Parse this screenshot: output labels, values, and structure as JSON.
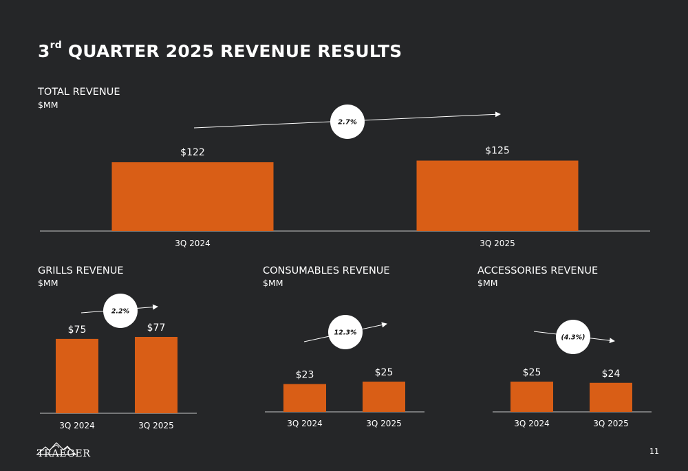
{
  "slide": {
    "title_main": "3",
    "title_sup": "rd",
    "title_rest": " QUARTER 2025 REVENUE RESULTS",
    "page_number": "11",
    "logo_text": "TRAEGER"
  },
  "colors": {
    "bar": "#d95e16",
    "background": "#252628",
    "text": "#ffffff"
  },
  "sections": {
    "total": {
      "label": "TOTAL REVENUE",
      "unit": "$MM"
    },
    "grills": {
      "label": "GRILLS REVENUE",
      "unit": "$MM"
    },
    "consumables": {
      "label": "CONSUMABLES REVENUE",
      "unit": "$MM"
    },
    "accessories": {
      "label": "ACCESSORIES REVENUE",
      "unit": "$MM"
    }
  },
  "chart_data": [
    {
      "id": "total",
      "type": "bar",
      "title": "TOTAL REVENUE",
      "ylabel": "$MM",
      "categories": [
        "3Q 2024",
        "3Q 2025"
      ],
      "values": [
        122,
        125
      ],
      "data_labels": [
        "$122",
        "$125"
      ],
      "growth_label": "2.7%",
      "trend": "up"
    },
    {
      "id": "grills",
      "type": "bar",
      "title": "GRILLS REVENUE",
      "ylabel": "$MM",
      "categories": [
        "3Q 2024",
        "3Q 2025"
      ],
      "values": [
        75,
        77
      ],
      "data_labels": [
        "$75",
        "$77"
      ],
      "growth_label": "2.2%",
      "trend": "up"
    },
    {
      "id": "consumables",
      "type": "bar",
      "title": "CONSUMABLES REVENUE",
      "ylabel": "$MM",
      "categories": [
        "3Q 2024",
        "3Q 2025"
      ],
      "values": [
        23,
        25
      ],
      "data_labels": [
        "$23",
        "$25"
      ],
      "growth_label": "12.3%",
      "trend": "up"
    },
    {
      "id": "accessories",
      "type": "bar",
      "title": "ACCESSORIES REVENUE",
      "ylabel": "$MM",
      "categories": [
        "3Q 2024",
        "3Q 2025"
      ],
      "values": [
        25,
        24
      ],
      "data_labels": [
        "$25",
        "$24"
      ],
      "growth_label": "(4.3%)",
      "trend": "down"
    }
  ]
}
